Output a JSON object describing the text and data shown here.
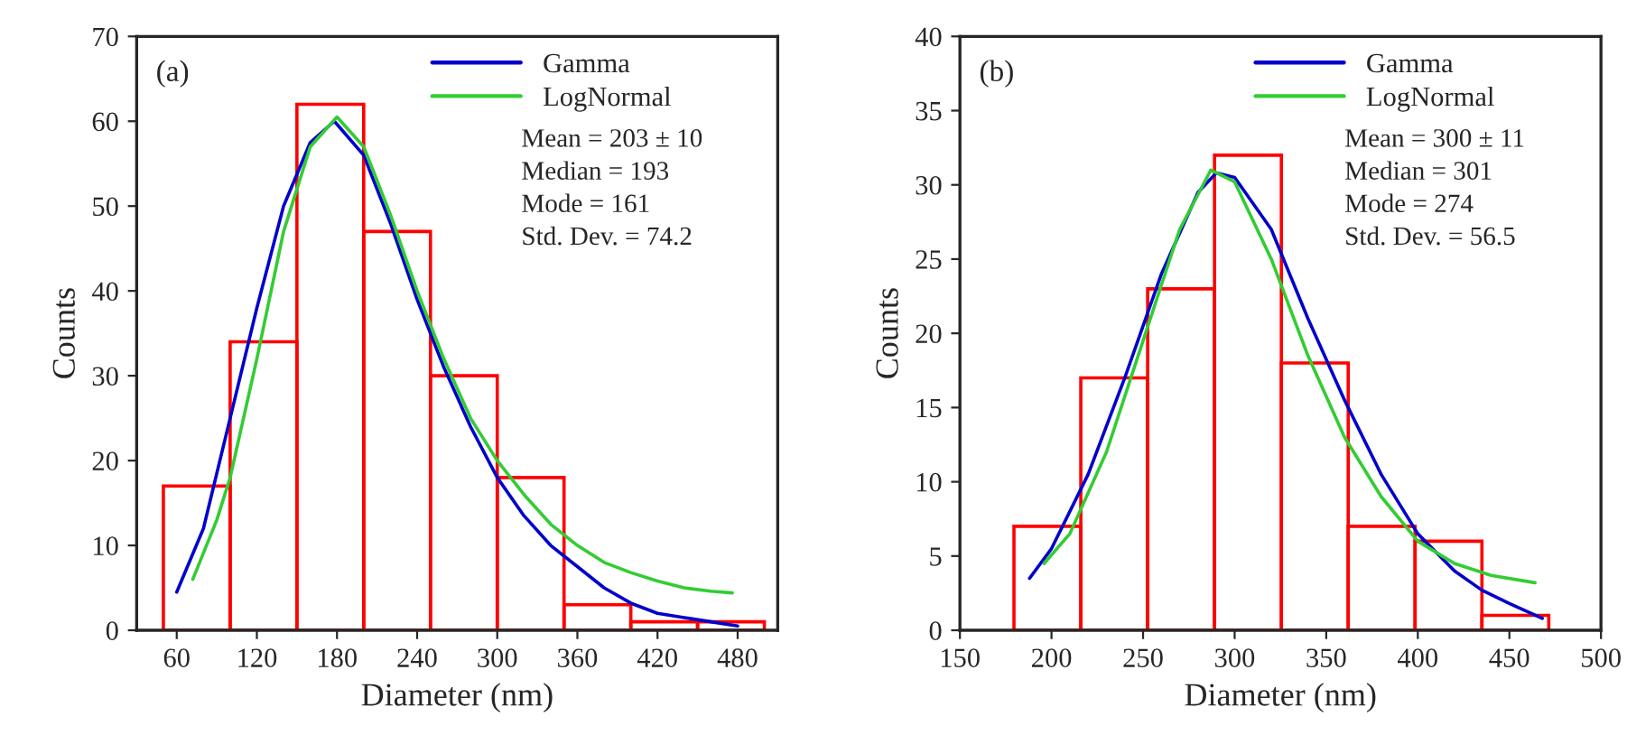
{
  "chart_data": [
    {
      "type": "histogram",
      "xlabel": "Diameter (nm)",
      "ylabel": "Counts",
      "color": "#ff0000",
      "bins": [
        50,
        100,
        150,
        200,
        250,
        300,
        350,
        400,
        450,
        500
      ],
      "values": [
        17,
        34,
        62,
        47,
        30,
        18,
        3,
        1,
        1
      ],
      "series": [
        {
          "name": "Gamma",
          "type": "line",
          "color": "#0000cc",
          "x": [
            60,
            80,
            100,
            120,
            140,
            160,
            178,
            200,
            220,
            240,
            260,
            280,
            300,
            320,
            340,
            360,
            380,
            400,
            420,
            440,
            460,
            480
          ],
          "values": [
            4.5,
            12,
            25,
            38,
            50,
            57.5,
            60,
            56,
            48,
            39,
            31,
            24,
            18,
            13.5,
            10,
            7.5,
            5,
            3.2,
            2,
            1.5,
            1,
            0.5
          ]
        },
        {
          "name": "LogNormal",
          "type": "line",
          "color": "#33cc33",
          "x": [
            72,
            90,
            100,
            120,
            140,
            160,
            180,
            200,
            220,
            240,
            260,
            280,
            300,
            320,
            340,
            360,
            380,
            400,
            420,
            440,
            460,
            476
          ],
          "values": [
            6,
            13,
            18,
            32,
            47,
            57,
            60.5,
            57,
            49,
            40,
            32,
            25,
            20,
            16,
            12.5,
            10,
            8,
            6.8,
            5.8,
            5,
            4.6,
            4.4
          ]
        }
      ],
      "xlim": [
        30,
        510
      ],
      "xticks": [
        60,
        120,
        180,
        240,
        300,
        360,
        420,
        480
      ],
      "ylim": [
        0,
        70
      ],
      "yticks": [
        0,
        10,
        20,
        30,
        40,
        50,
        60,
        70
      ],
      "annotations": [
        "(a)",
        "Mean = 203 ± 10",
        "Median = 193",
        "Mode = 161",
        "Std. Dev. = 74.2"
      ],
      "legend": "top right",
      "grid": false
    },
    {
      "type": "histogram",
      "xlabel": "Diameter (nm)",
      "ylabel": "Counts",
      "color": "#ff0000",
      "bins": [
        179.5,
        216,
        252.5,
        289,
        325.5,
        362,
        398.5,
        435,
        471.5
      ],
      "values": [
        7,
        17,
        23,
        32,
        18,
        7,
        6,
        1
      ],
      "series": [
        {
          "name": "Gamma",
          "type": "line",
          "color": "#0000cc",
          "x": [
            188,
            200,
            220,
            240,
            260,
            280,
            290,
            300,
            320,
            340,
            360,
            380,
            400,
            420,
            435,
            450,
            468
          ],
          "values": [
            3.5,
            5.5,
            10.5,
            17,
            24,
            29.5,
            30.8,
            30.5,
            27,
            21,
            15.5,
            10.5,
            6.5,
            4,
            2.7,
            1.8,
            0.8
          ]
        },
        {
          "name": "LogNormal",
          "type": "line",
          "color": "#33cc33",
          "x": [
            196,
            210,
            230,
            250,
            270,
            287,
            300,
            320,
            340,
            360,
            380,
            400,
            420,
            440,
            464
          ],
          "values": [
            4.5,
            6.5,
            12,
            19.5,
            27,
            31,
            30.2,
            25,
            18.5,
            13,
            9,
            6,
            4.5,
            3.7,
            3.2
          ]
        }
      ],
      "xlim": [
        150,
        500
      ],
      "xticks": [
        150,
        200,
        250,
        300,
        350,
        400,
        450,
        500
      ],
      "ylim": [
        0,
        40
      ],
      "yticks": [
        0,
        5,
        10,
        15,
        20,
        25,
        30,
        35,
        40
      ],
      "annotations": [
        "(b)",
        "Mean = 300 ± 11",
        "Median = 301",
        "Mode = 274",
        "Std. Dev. = 56.5"
      ],
      "legend": "top right",
      "grid": false
    }
  ]
}
